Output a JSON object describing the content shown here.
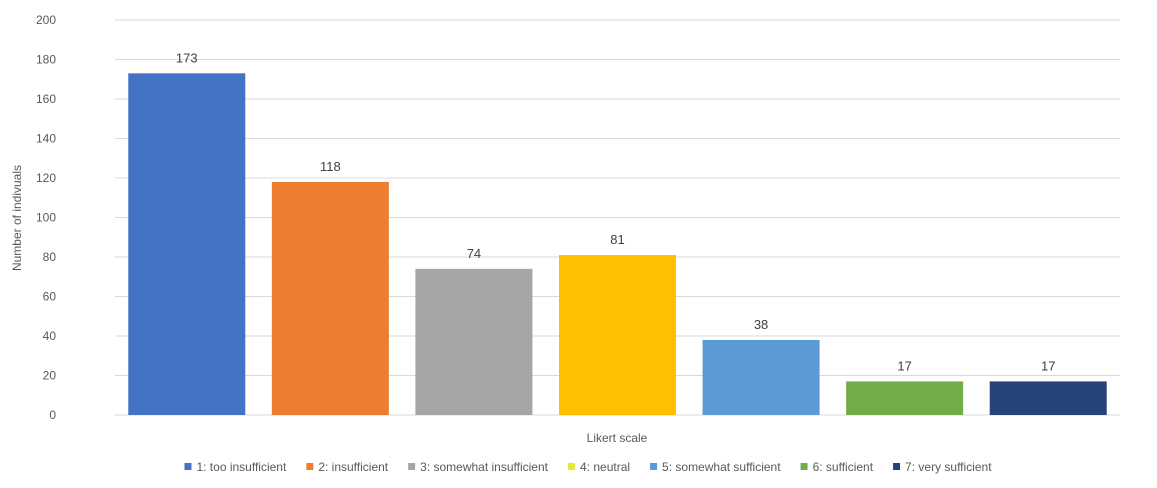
{
  "chart_data": {
    "type": "bar",
    "title": "",
    "xlabel": "Likert scale",
    "ylabel": "Number of indivuals",
    "ylim": [
      0,
      200
    ],
    "yticks": [
      0,
      20,
      40,
      60,
      80,
      100,
      120,
      140,
      160,
      180,
      200
    ],
    "grid": true,
    "legend_position": "bottom",
    "categories": [
      "1: too insufficient",
      "2: insufficient",
      "3: somewhat insufficient",
      "4: neutral",
      "5: somewhat sufficient",
      "6: sufficient",
      "7: very sufficient"
    ],
    "values": [
      173,
      118,
      74,
      81,
      38,
      17,
      17
    ],
    "bar_colors": [
      "#4472C4",
      "#ED7D31",
      "#A5A5A5",
      "#FFC000",
      "#5B9BD5",
      "#70AD47",
      "#264478"
    ],
    "legend_colors": [
      "#4472C4",
      "#ED7D31",
      "#A5A5A5",
      "#E8E83A",
      "#5B9BD5",
      "#70AD47",
      "#264478"
    ],
    "gridline_color": "#D9D9D9"
  }
}
